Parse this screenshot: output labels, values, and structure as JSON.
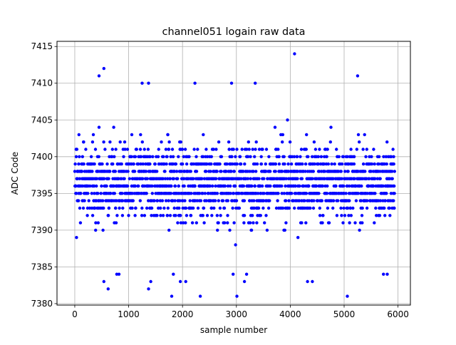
{
  "chart_data": {
    "type": "scatter",
    "title": "channel051 logain raw data",
    "xlabel": "sample number",
    "ylabel": "ADC Code",
    "xlim": [
      -330,
      6230
    ],
    "ylim": [
      7379.8,
      7415.7
    ],
    "x_ticks": [
      0,
      1000,
      2000,
      3000,
      4000,
      5000,
      6000
    ],
    "y_ticks": [
      7380,
      7385,
      7390,
      7395,
      7400,
      7405,
      7410,
      7415
    ],
    "grid": true,
    "marker_color": "#0000ff",
    "sample_count": 5940,
    "dense_band": [
      7389,
      7403
    ],
    "sparse_band": [
      7385,
      7408
    ],
    "outliers": [
      {
        "x": 540,
        "y": 7412
      },
      {
        "x": 4080,
        "y": 7414
      },
      {
        "x": 5250,
        "y": 7411
      },
      {
        "x": 1250,
        "y": 7410
      },
      {
        "x": 1370,
        "y": 7410
      },
      {
        "x": 2230,
        "y": 7410
      },
      {
        "x": 2910,
        "y": 7410
      },
      {
        "x": 3350,
        "y": 7410
      },
      {
        "x": 450,
        "y": 7411
      },
      {
        "x": 1800,
        "y": 7381
      },
      {
        "x": 2330,
        "y": 7381
      },
      {
        "x": 3010,
        "y": 7381
      },
      {
        "x": 5060,
        "y": 7381
      },
      {
        "x": 620,
        "y": 7382
      },
      {
        "x": 1370,
        "y": 7382
      },
      {
        "x": 540,
        "y": 7383
      },
      {
        "x": 1410,
        "y": 7383
      },
      {
        "x": 1960,
        "y": 7383
      },
      {
        "x": 2060,
        "y": 7383
      },
      {
        "x": 3150,
        "y": 7383
      },
      {
        "x": 4320,
        "y": 7383
      },
      {
        "x": 4410,
        "y": 7383
      },
      {
        "x": 780,
        "y": 7384
      },
      {
        "x": 820,
        "y": 7384
      },
      {
        "x": 1830,
        "y": 7384
      },
      {
        "x": 2940,
        "y": 7384
      },
      {
        "x": 3190,
        "y": 7384
      },
      {
        "x": 5730,
        "y": 7384
      },
      {
        "x": 5800,
        "y": 7384
      }
    ]
  }
}
